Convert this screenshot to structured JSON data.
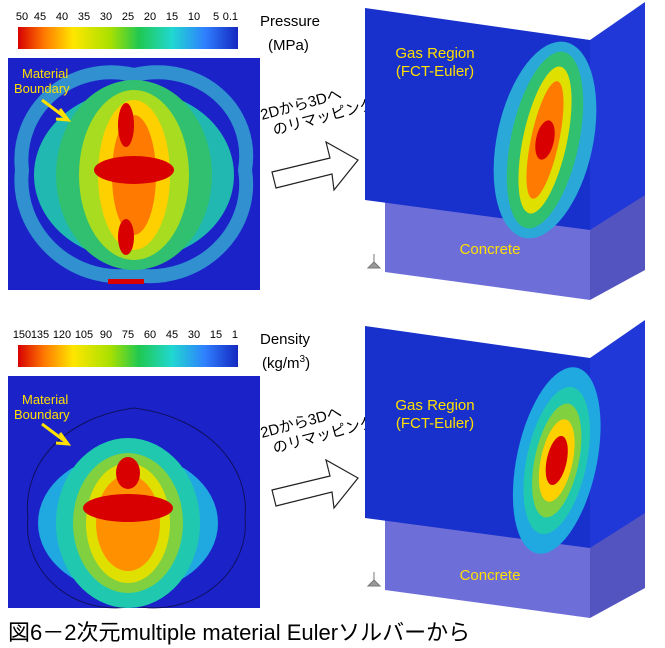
{
  "top": {
    "scale_labels": [
      50,
      45,
      40,
      35,
      30,
      25,
      20,
      15,
      10,
      5,
      0.1
    ],
    "quantity": "Pressure",
    "unit": "(MPa)",
    "boundary_label": [
      "Material",
      "Boundary"
    ],
    "remap_text": [
      "2Dから3Dへ",
      "のリマッピング"
    ],
    "gas_region": [
      "Gas Region",
      "(FCT-Euler)"
    ],
    "concrete": "Concrete"
  },
  "bottom": {
    "scale_labels": [
      150,
      135,
      120,
      105,
      90,
      75,
      60,
      45,
      30,
      15,
      1
    ],
    "quantity": "Density",
    "unit": [
      "(kg/m",
      "3",
      ")"
    ],
    "boundary_label": [
      "Material",
      "Boundary"
    ],
    "remap_text": [
      "2Dから3Dへ",
      "のリマッピング"
    ],
    "gas_region": [
      "Gas Region",
      "(FCT-Euler)"
    ],
    "concrete": "Concrete"
  },
  "caption": "図6－2次元multiple material Eulerソルバーから"
}
